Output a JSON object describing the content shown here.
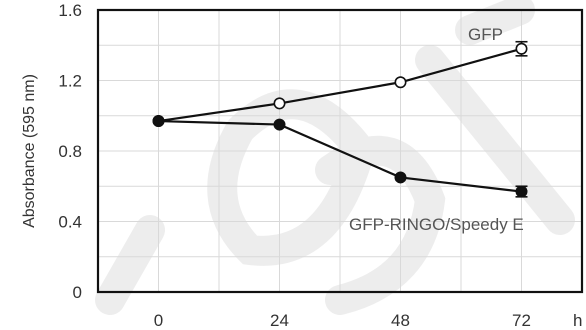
{
  "chart_data": {
    "type": "line",
    "title": "",
    "xlabel": "",
    "x_unit_label": "h",
    "ylabel": "Absorbance (595 nm)",
    "x": [
      0,
      24,
      48,
      72
    ],
    "x_tick_labels": [
      "0",
      "24",
      "48",
      "72"
    ],
    "xlim": [
      -12,
      84
    ],
    "ylim": [
      0,
      1.6
    ],
    "y_ticks": [
      0,
      0.4,
      0.8,
      1.2,
      1.6
    ],
    "y_tick_labels": [
      "0",
      "0.4",
      "0.8",
      "1.2",
      "1.6"
    ],
    "grid": true,
    "series": [
      {
        "name": "GFP",
        "marker": "open-circle",
        "values": [
          0.97,
          1.07,
          1.19,
          1.38
        ],
        "errors": [
          0,
          0,
          0,
          0.04
        ]
      },
      {
        "name": "GFP-RINGO/Speedy E",
        "marker": "filled-circle",
        "values": [
          0.97,
          0.95,
          0.65,
          0.57
        ],
        "errors": [
          0,
          0,
          0,
          0.03
        ]
      }
    ],
    "colors": {
      "line": "#111111",
      "open_fill": "#ffffff",
      "filled": "#111111",
      "grid": "#d9d9d9"
    }
  }
}
